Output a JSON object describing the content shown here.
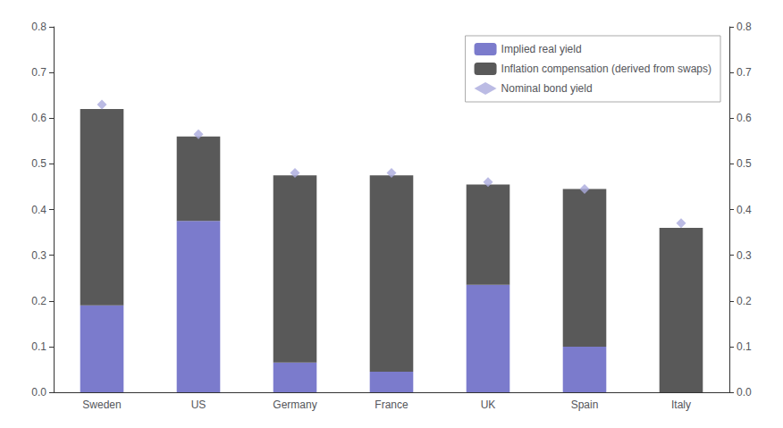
{
  "chart_data": {
    "type": "bar",
    "stacked": true,
    "categories": [
      "Sweden",
      "US",
      "Germany",
      "France",
      "UK",
      "Spain",
      "Italy"
    ],
    "series": [
      {
        "name": "Implied real yield",
        "type": "bar",
        "color": "#7b7bcc",
        "values": [
          0.19,
          0.375,
          0.065,
          0.045,
          0.235,
          0.1,
          0.0
        ]
      },
      {
        "name": "Inflation compensation (derived from swaps)",
        "type": "bar",
        "color": "#595959",
        "values": [
          0.43,
          0.185,
          0.41,
          0.43,
          0.22,
          0.345,
          0.36
        ]
      },
      {
        "name": "Nominal bond yield",
        "type": "scatter",
        "marker": "diamond",
        "color": "#aaaadd",
        "values": [
          0.63,
          0.565,
          0.48,
          0.48,
          0.46,
          0.445,
          0.37
        ]
      }
    ],
    "ylim": [
      0.0,
      0.8
    ],
    "yticks": [
      {
        "value": 0.0,
        "label": "0.0"
      },
      0.1,
      0.2,
      0.3,
      0.4,
      0.5,
      0.6,
      0.7,
      0.8
    ],
    "y2lim": [
      0.0,
      0.8
    ],
    "y2ticks": [
      {
        "value": 0.0,
        "label": "0.0"
      },
      0.1,
      0.2,
      0.3,
      0.4,
      0.5,
      0.6,
      0.7,
      0.8
    ],
    "grid": false,
    "legend": "upper right"
  }
}
